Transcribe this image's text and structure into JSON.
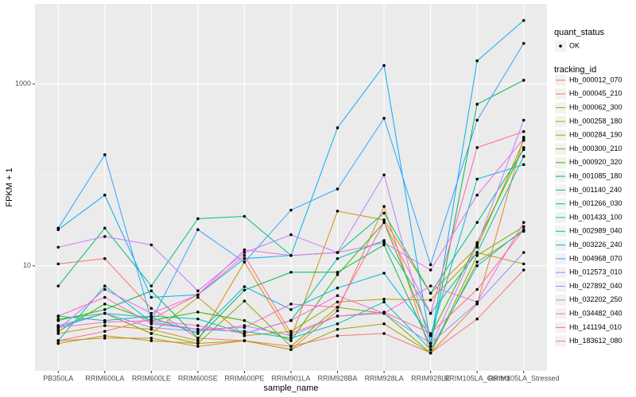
{
  "chart_data": {
    "type": "line",
    "x_label": "sample_name",
    "y_label": "FPKM + 1",
    "log_y": true,
    "grid": true,
    "ylim": [
      0.7,
      7600
    ],
    "yticks": [
      10,
      1000
    ],
    "point_legend": {
      "title": "quant_status",
      "label": "OK"
    },
    "legend_title": "tracking_id",
    "point_color": "#000000",
    "categories": [
      "PB350LA",
      "RRIM600LA",
      "RRIM600LE",
      "RRIM600SE",
      "RRIM600PE",
      "RRIM901LA",
      "RRIM928BA",
      "RRIM928LA",
      "RRIM928LE",
      "RRIM105LA_Control",
      "RRIM105LA_Stressed"
    ],
    "series": [
      {
        "name": "Hb_000012_070",
        "color": "#F8766D",
        "values": [
          10.5,
          12,
          3.4,
          1.6,
          1.5,
          1.3,
          1.7,
          1.8,
          1.1,
          2.6,
          9
        ]
      },
      {
        "name": "Hb_000045_210",
        "color": "#EA8331",
        "values": [
          1.5,
          1.6,
          1.6,
          1.3,
          1.5,
          1.2,
          3.2,
          45,
          1.1,
          3.8,
          260
        ]
      },
      {
        "name": "Hb_000062_300",
        "color": "#D89000",
        "values": [
          1.8,
          2.2,
          2.0,
          1.5,
          11,
          1.6,
          40,
          32,
          5.0,
          16,
          240
        ]
      },
      {
        "name": "Hb_000258_180",
        "color": "#C09B00",
        "values": [
          2.2,
          3.0,
          1.8,
          4.5,
          1.7,
          1.9,
          4.0,
          4.3,
          4.2,
          14,
          10.5
        ]
      },
      {
        "name": "Hb_000284_190",
        "color": "#A3A500",
        "values": [
          1.4,
          1.7,
          1.5,
          1.4,
          1.5,
          1.2,
          2.0,
          2.3,
          1.1,
          11,
          24
        ]
      },
      {
        "name": "Hb_000300_210",
        "color": "#7CAE00",
        "values": [
          2.6,
          3.0,
          1.8,
          1.4,
          4.1,
          1.3,
          3.5,
          3.0,
          1.1,
          13,
          27
        ]
      },
      {
        "name": "Hb_000920_320",
        "color": "#39B600",
        "values": [
          1.9,
          3.8,
          2.5,
          3.1,
          2.5,
          1.5,
          8,
          30,
          1.7,
          18,
          200
        ]
      },
      {
        "name": "Hb_001085_180",
        "color": "#00BB4E",
        "values": [
          2.5,
          3.3,
          5.3,
          1.6,
          5.4,
          8.5,
          8.5,
          17,
          1.3,
          600,
          1100
        ]
      },
      {
        "name": "Hb_001140_240",
        "color": "#00BF7D",
        "values": [
          6,
          26,
          6,
          33,
          35,
          13,
          14,
          38,
          5,
          30,
          190
        ]
      },
      {
        "name": "Hb_001266_030",
        "color": "#00C1A3",
        "values": [
          2.8,
          2.5,
          2.8,
          2.6,
          1.8,
          2.5,
          12,
          19,
          3.0,
          14,
          160
        ]
      },
      {
        "name": "Hb_001433_100",
        "color": "#00BFC4",
        "values": [
          1.5,
          6.0,
          2.4,
          2.0,
          1.9,
          1.6,
          2.3,
          4.0,
          1.2,
          10,
          25
        ]
      },
      {
        "name": "Hb_002989_040",
        "color": "#00BAE0",
        "values": [
          2.1,
          3.0,
          2.7,
          1.8,
          5.9,
          3.3,
          5.7,
          8.3,
          1.7,
          90,
          130
        ]
      },
      {
        "name": "Hb_003226_240",
        "color": "#00B0F6",
        "values": [
          25,
          60,
          4.5,
          4.8,
          12,
          13,
          330,
          1600,
          1.4,
          1800,
          5000
        ]
      },
      {
        "name": "Hb_004968_070",
        "color": "#35A2FF",
        "values": [
          26,
          167,
          2.5,
          25,
          11,
          41,
          70,
          420,
          10.3,
          400,
          2800
        ]
      },
      {
        "name": "Hb_012573_010",
        "color": "#9590FF",
        "values": [
          2.2,
          3.0,
          2.1,
          1.9,
          2.2,
          1.7,
          2.8,
          3.0,
          1.4,
          3.9,
          14
        ]
      },
      {
        "name": "Hb_027892_040",
        "color": "#C77CFF",
        "values": [
          16,
          21,
          17,
          5.3,
          14,
          22,
          14,
          100,
          1.3,
          17,
          400
        ]
      },
      {
        "name": "Hb_032202_250",
        "color": "#E76BF3",
        "values": [
          2.0,
          5.5,
          3.0,
          4.8,
          15,
          13,
          14,
          18,
          9,
          60,
          250
        ]
      },
      {
        "name": "Hb_034482_040",
        "color": "#FA62DB",
        "values": [
          2.1,
          2.4,
          2.5,
          2.2,
          1.8,
          2.5,
          4.7,
          3.0,
          6.0,
          4.0,
          30
        ]
      },
      {
        "name": "Hb_141194_010",
        "color": "#FF62BC",
        "values": [
          2.8,
          4.5,
          2.3,
          2.0,
          2.1,
          3.8,
          3.5,
          30,
          3.0,
          200,
          300
        ]
      },
      {
        "name": "Hb_183612_080",
        "color": "#FF6C91",
        "values": [
          1.5,
          1.9,
          2.6,
          4.8,
          13,
          1.8,
          2.8,
          3.1,
          1.8,
          5.5,
          25
        ]
      }
    ]
  }
}
